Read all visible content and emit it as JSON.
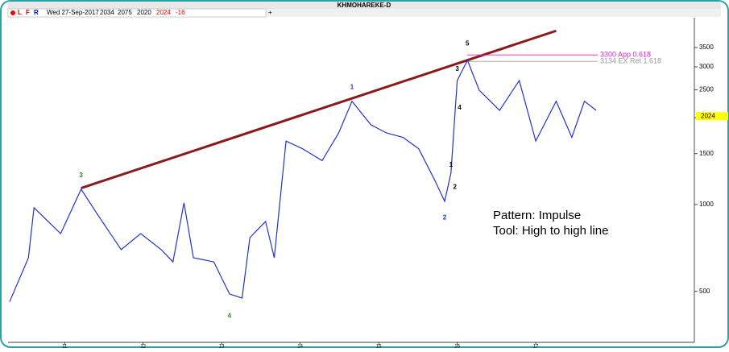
{
  "header": {
    "title": "KHMOHAREKE-D"
  },
  "toolbar": {
    "flags": [
      "L",
      "F",
      "R"
    ],
    "date": "Wed 27-Sep-2017",
    "open": 2034,
    "high": 2075,
    "low": 2020,
    "close": 2024,
    "change": -16,
    "add": "+"
  },
  "chart_data": {
    "type": "line",
    "log_scale": true,
    "x": [
      10.3,
      10.54,
      10.61,
      10.79,
      10.95,
      11.21,
      11.41,
      11.72,
      11.97,
      12.23,
      12.38,
      12.52,
      12.64,
      12.9,
      13.1,
      13.26,
      13.36,
      13.56,
      13.67,
      13.82,
      14.03,
      14.28,
      14.49,
      14.66,
      14.9,
      15.1,
      15.31,
      15.51,
      15.72,
      15.84,
      15.92,
      16.0,
      16.13,
      16.28,
      16.54,
      16.79,
      17.0,
      17.26,
      17.46,
      17.62,
      17.77
    ],
    "series": [
      {
        "color": "#2233cc",
        "values": [
          460,
          654,
          975,
          874,
          793,
          1130,
          932,
          698,
          793,
          698,
          633,
          1013,
          654,
          633,
          490,
          474,
          768,
          874,
          654,
          1660,
          1560,
          1420,
          1770,
          2280,
          1890,
          1770,
          1710,
          1560,
          1205,
          1026,
          1285,
          2690,
          3160,
          2490,
          2120,
          2690,
          1660,
          2280,
          1710,
          2280,
          2120
        ]
      }
    ],
    "xlim": [
      10.28,
      19.02
    ],
    "xticks": [
      11,
      12,
      13,
      14,
      15,
      16,
      17
    ],
    "ylim": [
      333,
      4440
    ],
    "yticks": [
      500,
      1000,
      1500,
      2000,
      2500,
      3000,
      3500
    ],
    "last_price": 2024,
    "trendline": {
      "color": "#8b1a1a",
      "x": [
        11.21,
        17.26
      ],
      "values": [
        1140,
        4000
      ]
    },
    "levels": [
      {
        "value": 3300,
        "label": "3300 App 0.618",
        "color": "#e020c0"
      },
      {
        "value": 3134,
        "label": "3134 EX Ret 1.618",
        "color": "#999999"
      }
    ],
    "waves": [
      {
        "label": "3",
        "x": 11.21,
        "value": 1260,
        "color": "#1a9a1a"
      },
      {
        "label": "4",
        "x": 13.1,
        "value": 410,
        "color": "#1a9a1a"
      },
      {
        "label": "1",
        "x": 14.66,
        "value": 2550,
        "color": "#2233cc"
      },
      {
        "label": "2",
        "x": 15.84,
        "value": 900,
        "color": "#2233cc"
      },
      {
        "label": "5",
        "x": 16.13,
        "value": 3600,
        "color": "#000000"
      },
      {
        "label": "3",
        "x": 16.0,
        "value": 2940,
        "color": "#000000"
      },
      {
        "label": "4",
        "x": 16.03,
        "value": 2160,
        "color": "#000000"
      },
      {
        "label": "1",
        "x": 15.92,
        "value": 1370,
        "color": "#000000"
      },
      {
        "label": "2",
        "x": 15.97,
        "value": 1150,
        "color": "#000000"
      }
    ],
    "annotations": [
      "Pattern: Impulse",
      "Tool: High to high line"
    ]
  }
}
